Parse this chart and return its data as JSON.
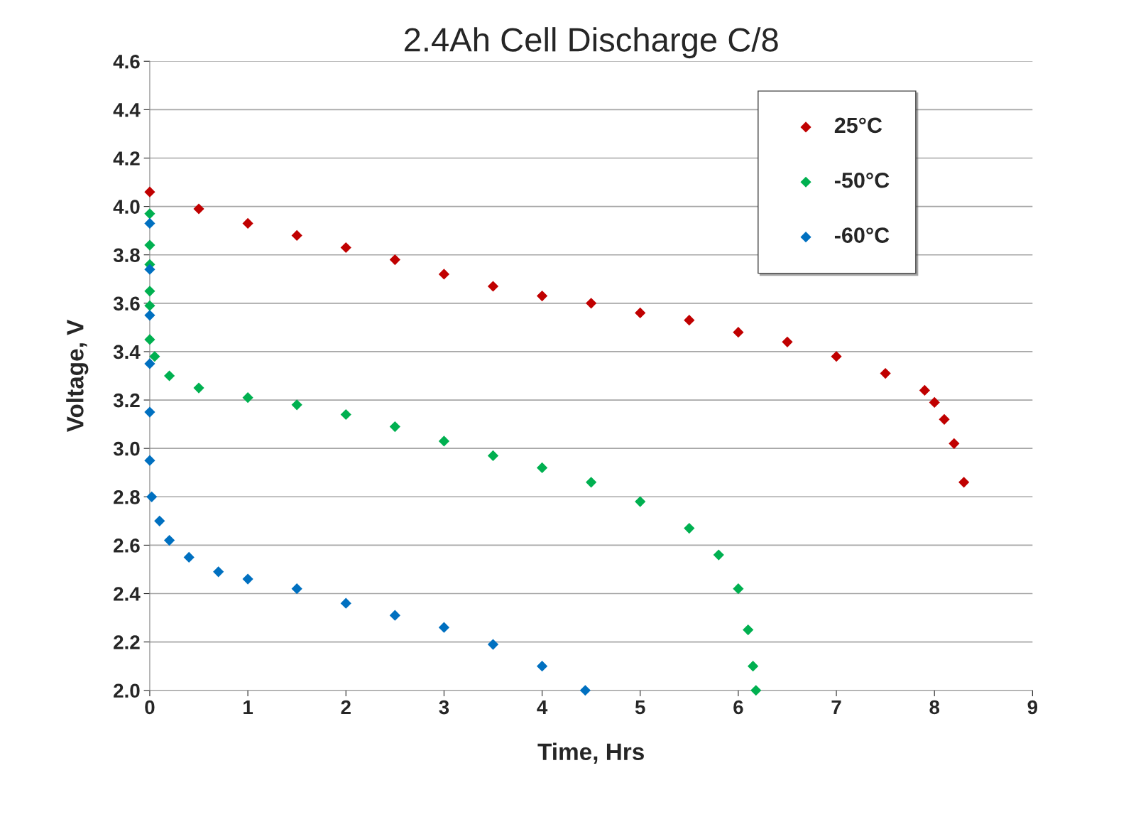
{
  "chart_data": {
    "type": "scatter",
    "title": "2.4Ah Cell Discharge C/8",
    "xlabel": "Time, Hrs",
    "ylabel": "Voltage, V",
    "xlim": [
      0,
      9
    ],
    "xticks": [
      0,
      1,
      2,
      3,
      4,
      5,
      6,
      7,
      8,
      9
    ],
    "ylim": [
      2.0,
      4.6
    ],
    "yticks": [
      {
        "value": 2.0,
        "label": "2.0"
      },
      {
        "value": 2.2,
        "label": "2.2"
      },
      {
        "value": 2.4,
        "label": "2.4"
      },
      {
        "value": 2.6,
        "label": "2.6"
      },
      {
        "value": 2.8,
        "label": "2.8"
      },
      {
        "value": 3.0,
        "label": "3.0"
      },
      {
        "value": 3.2,
        "label": "3.2"
      },
      {
        "value": 3.4,
        "label": "3.4"
      },
      {
        "value": 3.6,
        "label": "3.6"
      },
      {
        "value": 3.8,
        "label": "3.8"
      },
      {
        "value": 4.0,
        "label": "4.0"
      },
      {
        "value": 4.2,
        "label": "4.2"
      },
      {
        "value": 4.4,
        "label": "4.4"
      },
      {
        "value": 4.6,
        "label": "4.6"
      }
    ],
    "grid": "y",
    "legend": "top right",
    "marker": "diamond",
    "series": [
      {
        "name": "25°C",
        "color": "#c00000",
        "x": [
          0,
          0.5,
          1,
          1.5,
          2,
          2.5,
          3,
          3.5,
          4,
          4.5,
          5,
          5.5,
          6,
          6.5,
          7,
          7.5,
          7.9,
          8.0,
          8.1,
          8.2,
          8.3
        ],
        "values": [
          4.06,
          3.99,
          3.93,
          3.88,
          3.83,
          3.78,
          3.72,
          3.67,
          3.63,
          3.6,
          3.56,
          3.53,
          3.48,
          3.44,
          3.38,
          3.31,
          3.24,
          3.19,
          3.12,
          3.02,
          2.86
        ]
      },
      {
        "name": "-50°C",
        "color": "#00b050",
        "x": [
          0,
          0,
          0,
          0,
          0,
          0,
          0.05,
          0.2,
          0.5,
          1,
          1.5,
          2,
          2.5,
          3,
          3.5,
          4,
          4.5,
          5,
          5.5,
          5.8,
          6.0,
          6.1,
          6.15,
          6.18
        ],
        "values": [
          3.97,
          3.84,
          3.76,
          3.65,
          3.59,
          3.45,
          3.38,
          3.3,
          3.25,
          3.21,
          3.18,
          3.14,
          3.09,
          3.03,
          2.97,
          2.92,
          2.86,
          2.78,
          2.67,
          2.56,
          2.42,
          2.25,
          2.1,
          2.0
        ]
      },
      {
        "name": "-60°C",
        "color": "#0070c0",
        "x": [
          0,
          0,
          0,
          0,
          0,
          0,
          0.02,
          0.1,
          0.2,
          0.4,
          0.7,
          1,
          1.5,
          2,
          2.5,
          3,
          3.5,
          4,
          4.44
        ],
        "values": [
          3.93,
          3.74,
          3.55,
          3.35,
          3.15,
          2.95,
          2.8,
          2.7,
          2.62,
          2.55,
          2.49,
          2.46,
          2.42,
          2.36,
          2.31,
          2.26,
          2.19,
          2.1,
          2.0
        ]
      }
    ]
  }
}
